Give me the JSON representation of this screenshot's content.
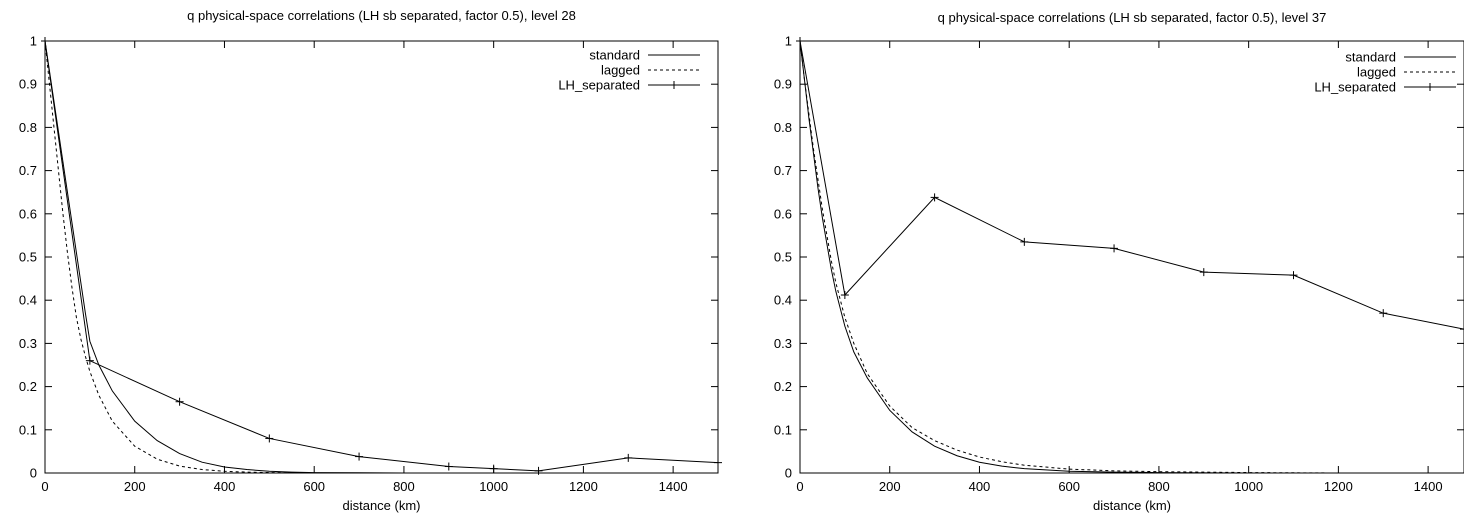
{
  "chart_data": [
    {
      "type": "line",
      "title": "q physical-space correlations (LH sb separated, factor 0.5), level 28",
      "xlabel": "distance (km)",
      "ylabel": "",
      "xlim": [
        0,
        1500
      ],
      "ylim": [
        0,
        1
      ],
      "xticks": [
        "0",
        "200",
        "400",
        "600",
        "800",
        "1000",
        "1200",
        "1400"
      ],
      "yticks": [
        "0",
        "0.1",
        "0.2",
        "0.3",
        "0.4",
        "0.5",
        "0.6",
        "0.7",
        "0.8",
        "0.9",
        "1"
      ],
      "legend_position": "top-right",
      "series": [
        {
          "name": "standard",
          "style": "solid",
          "points": [
            [
              0,
              1
            ],
            [
              10,
              0.93
            ],
            [
              20,
              0.86
            ],
            [
              30,
              0.79
            ],
            [
              40,
              0.72
            ],
            [
              50,
              0.65
            ],
            [
              60,
              0.58
            ],
            [
              70,
              0.51
            ],
            [
              80,
              0.44
            ],
            [
              90,
              0.37
            ],
            [
              100,
              0.305
            ],
            [
              120,
              0.25
            ],
            [
              150,
              0.19
            ],
            [
              200,
              0.12
            ],
            [
              250,
              0.075
            ],
            [
              300,
              0.045
            ],
            [
              350,
              0.025
            ],
            [
              400,
              0.014
            ],
            [
              450,
              0.008
            ],
            [
              500,
              0.004
            ],
            [
              550,
              0.002
            ],
            [
              600,
              0.001
            ],
            [
              700,
              0.0005
            ],
            [
              800,
              0
            ],
            [
              1000,
              0
            ],
            [
              1200,
              0
            ],
            [
              1500,
              0
            ]
          ]
        },
        {
          "name": "lagged",
          "style": "dashed",
          "points": [
            [
              0,
              1
            ],
            [
              10,
              0.9
            ],
            [
              20,
              0.8
            ],
            [
              30,
              0.7
            ],
            [
              40,
              0.6
            ],
            [
              50,
              0.51
            ],
            [
              60,
              0.43
            ],
            [
              70,
              0.36
            ],
            [
              80,
              0.31
            ],
            [
              90,
              0.27
            ],
            [
              100,
              0.235
            ],
            [
              120,
              0.18
            ],
            [
              150,
              0.12
            ],
            [
              200,
              0.062
            ],
            [
              250,
              0.032
            ],
            [
              300,
              0.016
            ],
            [
              350,
              0.008
            ],
            [
              400,
              0.004
            ],
            [
              450,
              0.002
            ],
            [
              500,
              0.001
            ],
            [
              600,
              0
            ],
            [
              800,
              0
            ],
            [
              1000,
              0
            ],
            [
              1200,
              0
            ],
            [
              1500,
              0
            ]
          ]
        },
        {
          "name": "LH_separated",
          "style": "solid-plus",
          "points": [
            [
              0,
              1
            ],
            [
              100,
              0.26
            ],
            [
              300,
              0.165
            ],
            [
              500,
              0.08
            ],
            [
              700,
              0.038
            ],
            [
              900,
              0.015
            ],
            [
              1000,
              0.01
            ],
            [
              1100,
              0.005
            ],
            [
              1300,
              0.035
            ],
            [
              1500,
              0.024
            ]
          ]
        }
      ]
    },
    {
      "type": "line",
      "title": "q physical-space correlations (LH sb separated, factor 0.5), level 37",
      "xlabel": "distance (km)",
      "ylabel": "",
      "xlim": [
        0,
        1480
      ],
      "ylim": [
        0,
        1
      ],
      "xticks": [
        "0",
        "200",
        "400",
        "600",
        "800",
        "1000",
        "1200",
        "1400"
      ],
      "yticks": [
        "0",
        "0.1",
        "0.2",
        "0.3",
        "0.4",
        "0.5",
        "0.6",
        "0.7",
        "0.8",
        "0.9",
        "1"
      ],
      "legend_position": "top-right",
      "series": [
        {
          "name": "standard",
          "style": "solid",
          "points": [
            [
              0,
              1
            ],
            [
              10,
              0.91
            ],
            [
              20,
              0.82
            ],
            [
              30,
              0.74
            ],
            [
              40,
              0.66
            ],
            [
              50,
              0.59
            ],
            [
              60,
              0.53
            ],
            [
              70,
              0.47
            ],
            [
              80,
              0.42
            ],
            [
              90,
              0.38
            ],
            [
              100,
              0.34
            ],
            [
              120,
              0.28
            ],
            [
              150,
              0.22
            ],
            [
              200,
              0.145
            ],
            [
              250,
              0.095
            ],
            [
              300,
              0.062
            ],
            [
              350,
              0.04
            ],
            [
              400,
              0.025
            ],
            [
              450,
              0.016
            ],
            [
              500,
              0.01
            ],
            [
              600,
              0.004
            ],
            [
              700,
              0.002
            ],
            [
              800,
              0.001
            ],
            [
              1000,
              0
            ],
            [
              1200,
              0
            ],
            [
              1480,
              0
            ]
          ]
        },
        {
          "name": "lagged",
          "style": "dashed",
          "points": [
            [
              0,
              1
            ],
            [
              10,
              0.91
            ],
            [
              20,
              0.83
            ],
            [
              30,
              0.75
            ],
            [
              40,
              0.68
            ],
            [
              50,
              0.61
            ],
            [
              60,
              0.55
            ],
            [
              70,
              0.49
            ],
            [
              80,
              0.44
            ],
            [
              90,
              0.4
            ],
            [
              100,
              0.36
            ],
            [
              120,
              0.3
            ],
            [
              150,
              0.23
            ],
            [
              200,
              0.155
            ],
            [
              250,
              0.105
            ],
            [
              300,
              0.075
            ],
            [
              350,
              0.053
            ],
            [
              400,
              0.037
            ],
            [
              450,
              0.026
            ],
            [
              500,
              0.018
            ],
            [
              600,
              0.009
            ],
            [
              700,
              0.005
            ],
            [
              800,
              0.003
            ],
            [
              1000,
              0.001
            ],
            [
              1200,
              0
            ],
            [
              1480,
              0
            ]
          ]
        },
        {
          "name": "LH_separated",
          "style": "solid-plus",
          "points": [
            [
              0,
              1
            ],
            [
              100,
              0.412
            ],
            [
              300,
              0.638
            ],
            [
              500,
              0.535
            ],
            [
              700,
              0.52
            ],
            [
              900,
              0.465
            ],
            [
              1100,
              0.458
            ],
            [
              1300,
              0.37
            ],
            [
              1480,
              0.333
            ]
          ]
        }
      ]
    }
  ]
}
